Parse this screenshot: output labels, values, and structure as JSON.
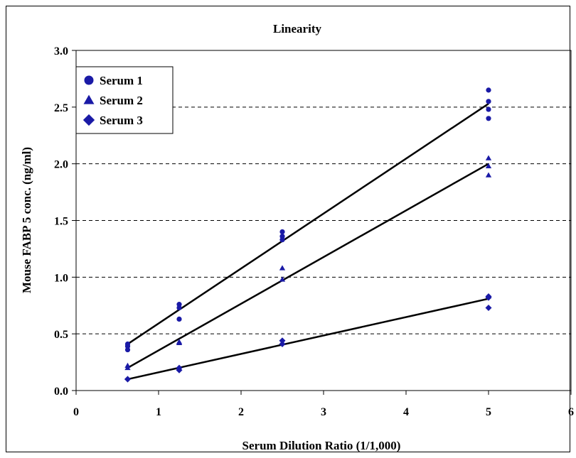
{
  "chart_data": {
    "type": "scatter",
    "title": "Linearity",
    "xlabel": "Serum Dilution Ratio (1/1,000)",
    "ylabel": "Mouse FABP 5 conc. (ng/ml)",
    "xlim": [
      0,
      6
    ],
    "ylim": [
      0,
      3.0
    ],
    "xticks": [
      "0",
      "1",
      "2",
      "3",
      "4",
      "5",
      "6"
    ],
    "yticks": [
      "0.0",
      "0.5",
      "1.0",
      "1.5",
      "2.0",
      "2.5",
      "3.0"
    ],
    "grid": "horizontal-dashed",
    "legend_position": "top-left",
    "marker_color": "#1a1aa6",
    "line_color": "#000000",
    "series": [
      {
        "name": "Serum 1",
        "marker": "circle",
        "points": [
          [
            0.625,
            0.41
          ],
          [
            0.625,
            0.39
          ],
          [
            0.625,
            0.36
          ],
          [
            1.25,
            0.76
          ],
          [
            1.25,
            0.73
          ],
          [
            1.25,
            0.63
          ],
          [
            2.5,
            1.4
          ],
          [
            2.5,
            1.36
          ],
          [
            2.5,
            1.33
          ],
          [
            5,
            2.65
          ],
          [
            5,
            2.55
          ],
          [
            5,
            2.48
          ],
          [
            5,
            2.4
          ]
        ],
        "fit": [
          [
            0.625,
            0.41
          ],
          [
            5,
            2.53
          ]
        ]
      },
      {
        "name": "Serum 2",
        "marker": "triangle",
        "points": [
          [
            0.625,
            0.22
          ],
          [
            0.625,
            0.2
          ],
          [
            1.25,
            0.43
          ],
          [
            1.25,
            0.42
          ],
          [
            2.5,
            1.08
          ],
          [
            2.5,
            0.98
          ],
          [
            5,
            2.05
          ],
          [
            5,
            1.98
          ],
          [
            5,
            1.9
          ]
        ],
        "fit": [
          [
            0.625,
            0.2
          ],
          [
            5,
            2.0
          ]
        ]
      },
      {
        "name": "Serum 3",
        "marker": "diamond",
        "points": [
          [
            0.625,
            0.1
          ],
          [
            0.625,
            0.1
          ],
          [
            1.25,
            0.2
          ],
          [
            1.25,
            0.18
          ],
          [
            2.5,
            0.44
          ],
          [
            2.5,
            0.41
          ],
          [
            5,
            0.83
          ],
          [
            5,
            0.82
          ],
          [
            5,
            0.73
          ]
        ],
        "fit": [
          [
            0.625,
            0.1
          ],
          [
            5,
            0.81
          ]
        ]
      }
    ]
  }
}
